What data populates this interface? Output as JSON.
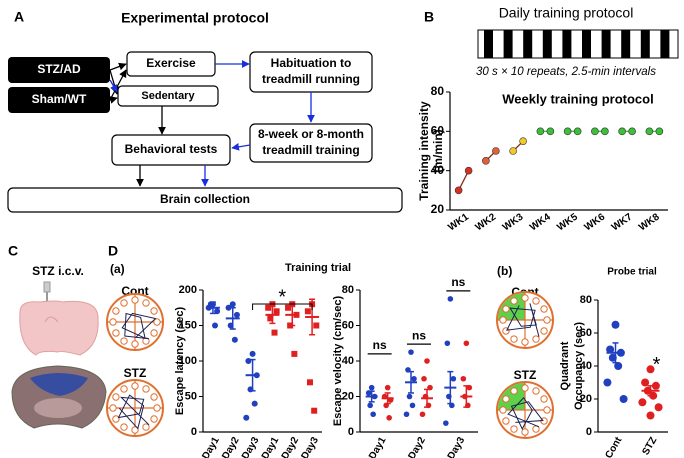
{
  "panel_labels": [
    "A",
    "B",
    "C",
    "D",
    "(a)",
    "(b)"
  ],
  "flowchart": {
    "title": "Experimental protocol",
    "nodes": [
      {
        "lines": [
          "STZ/AD"
        ]
      },
      {
        "lines": [
          "Sham/WT"
        ]
      },
      {
        "lines": [
          "Exercise"
        ]
      },
      {
        "lines": [
          "Sedentary"
        ]
      },
      {
        "lines": [
          "Habituation to",
          "treadmill running"
        ]
      },
      {
        "lines": [
          "8-week or 8-month",
          "treadmill training"
        ]
      },
      {
        "lines": [
          "Behavioral tests"
        ]
      },
      {
        "lines": [
          "Brain collection"
        ]
      }
    ]
  },
  "daily": {
    "title": "Daily training protocol",
    "caption": "30 s × 10 repeats, 2.5-min intervals"
  },
  "brain": {
    "label": "STZ i.c.v."
  },
  "maze_labels": [
    "Cont",
    "STZ",
    "Cont",
    "STZ"
  ],
  "section_titles": [
    "Training trial"
  ],
  "chart_data": [
    {
      "type": "week-pairs",
      "title": "Weekly training protocol",
      "ylabel": [
        "Training intensity",
        "(m/min)"
      ],
      "categories": [
        "WK1",
        "WK2",
        "WK3",
        "WK4",
        "WK5",
        "WK6",
        "WK7",
        "WK8"
      ],
      "values": [
        [
          30,
          40
        ],
        [
          45,
          50
        ],
        [
          50,
          55
        ],
        [
          60,
          60
        ],
        [
          60,
          60
        ],
        [
          60,
          60
        ],
        [
          60,
          60
        ],
        [
          60,
          60
        ]
      ],
      "colors": [
        "#d83020",
        "#e0603a",
        "#f0c828",
        "#3cc03c",
        "#3cc03c",
        "#3cc03c",
        "#3cc03c",
        "#3cc03c"
      ],
      "ylim": [
        20,
        80
      ],
      "yticks": [
        20,
        40,
        60,
        80
      ]
    },
    {
      "type": "strip",
      "ylabel": [
        "Escape latency (sec)"
      ],
      "categories": [
        "Day1",
        "Day2",
        "Day3",
        "Day1",
        "Day2",
        "Day3"
      ],
      "values": [
        [
          180,
          175,
          170,
          180,
          150
        ],
        [
          180,
          175,
          165,
          150,
          130
        ],
        [
          110,
          100,
          80,
          60,
          40,
          20
        ],
        [
          180,
          175,
          170,
          160,
          140
        ],
        [
          180,
          175,
          165,
          150,
          110
        ],
        [
          180,
          170,
          150,
          70,
          30
        ]
      ],
      "means": [
        175,
        160,
        80,
        165,
        165,
        162
      ],
      "errors": [
        8,
        15,
        22,
        12,
        15,
        25
      ],
      "colors": [
        "#2040c0",
        "#2040c0",
        "#2040c0",
        "#e02020",
        "#e02020",
        "#e02020"
      ],
      "markers": [
        "circle",
        "circle",
        "circle",
        "square",
        "square",
        "square"
      ],
      "annotations": [
        "*"
      ],
      "ylim": [
        0,
        200
      ],
      "yticks": [
        0,
        50,
        100,
        150,
        200
      ]
    },
    {
      "type": "paired-strip",
      "ylabel": [
        "Escape velocity (cm/sec)"
      ],
      "categories": [
        "Day1",
        "Day2",
        "Day3"
      ],
      "series": [
        {
          "color": "#2040c0",
          "values": [
            [
              25,
              22,
              20,
              15,
              10
            ],
            [
              45,
              35,
              30,
              20,
              15,
              10
            ],
            [
              75,
              50,
              30,
              20,
              15,
              5
            ]
          ],
          "means": [
            20,
            28,
            25
          ],
          "errors": [
            3,
            6,
            9
          ]
        },
        {
          "color": "#e02020",
          "values": [
            [
              25,
              20,
              18,
              15,
              8
            ],
            [
              40,
              30,
              25,
              20,
              15,
              10
            ],
            [
              50,
              30,
              25,
              20,
              15
            ]
          ],
          "means": [
            19,
            19,
            20
          ],
          "errors": [
            3,
            5,
            6
          ]
        }
      ],
      "annotations": [
        "ns",
        "ns",
        "ns"
      ],
      "ylim": [
        0,
        80
      ],
      "yticks": [
        0,
        20,
        40,
        60,
        80
      ]
    },
    {
      "type": "strip",
      "title": "Probe trial",
      "ylabel": [
        "Quadrant",
        "Occupancy (sec)"
      ],
      "categories": [
        "Cont",
        "STZ"
      ],
      "values": [
        [
          65,
          50,
          48,
          45,
          40,
          30,
          20
        ],
        [
          38,
          30,
          28,
          25,
          22,
          18,
          15,
          10
        ]
      ],
      "means": [
        48,
        25
      ],
      "errors": [
        6,
        3
      ],
      "colors": [
        "#2040c0",
        "#e02020"
      ],
      "markers": [
        "circle",
        "circle"
      ],
      "annotations": [
        "*"
      ],
      "ylim": [
        0,
        80
      ],
      "yticks": [
        0,
        20,
        40,
        60,
        80
      ]
    }
  ]
}
